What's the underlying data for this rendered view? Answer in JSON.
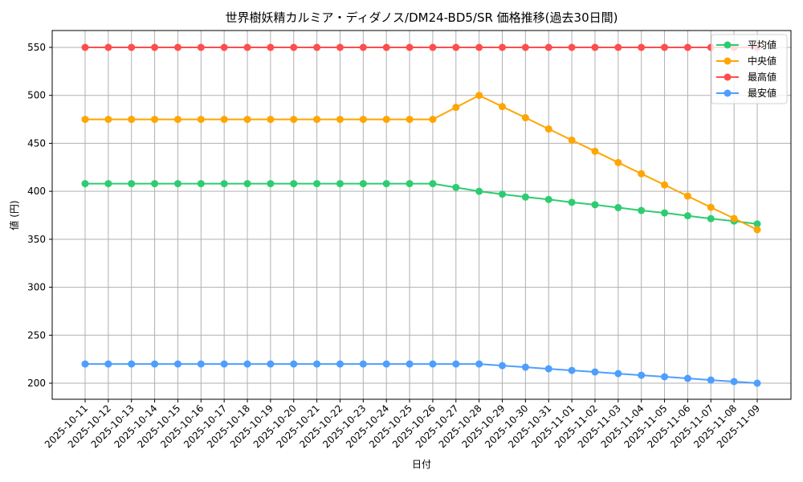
{
  "chart_data": {
    "type": "line",
    "title": "世界樹妖精カルミア・ディダノス/DM24-BD5/SR 価格推移(過去30日間)",
    "xlabel": "日付",
    "ylabel": "値 (円)",
    "ylim": [
      182,
      566
    ],
    "yticks": [
      200,
      250,
      300,
      350,
      400,
      450,
      500,
      550
    ],
    "grid": true,
    "legend_position": "upper right",
    "x": [
      "2025-10-11",
      "2025-10-12",
      "2025-10-13",
      "2025-10-14",
      "2025-10-15",
      "2025-10-16",
      "2025-10-17",
      "2025-10-18",
      "2025-10-19",
      "2025-10-20",
      "2025-10-21",
      "2025-10-22",
      "2025-10-23",
      "2025-10-24",
      "2025-10-25",
      "2025-10-26",
      "2025-10-27",
      "2025-10-28",
      "2025-10-29",
      "2025-10-30",
      "2025-10-31",
      "2025-11-01",
      "2025-11-02",
      "2025-11-03",
      "2025-11-04",
      "2025-11-05",
      "2025-11-06",
      "2025-11-07",
      "2025-11-08",
      "2025-11-09"
    ],
    "series": [
      {
        "name": "平均値",
        "color": "#2ecc71",
        "values": [
          408,
          408,
          408,
          408,
          408,
          408,
          408,
          408,
          408,
          408,
          408,
          408,
          408,
          408,
          408,
          408,
          404,
          400,
          397,
          394,
          391.5,
          388.5,
          386,
          383,
          380,
          377.5,
          374.5,
          371.5,
          369,
          366
        ]
      },
      {
        "name": "中央値",
        "color": "#ffa500",
        "values": [
          475,
          475,
          475,
          475,
          475,
          475,
          475,
          475,
          475,
          475,
          475,
          475,
          475,
          475,
          475,
          475,
          487.5,
          500,
          488.3,
          476.7,
          465,
          453.3,
          441.7,
          430,
          418.3,
          406.7,
          395,
          383.3,
          371.7,
          360
        ]
      },
      {
        "name": "最高値",
        "color": "#ff4d4d",
        "values": [
          550,
          550,
          550,
          550,
          550,
          550,
          550,
          550,
          550,
          550,
          550,
          550,
          550,
          550,
          550,
          550,
          550,
          550,
          550,
          550,
          550,
          550,
          550,
          550,
          550,
          550,
          550,
          550,
          550,
          550
        ]
      },
      {
        "name": "最安値",
        "color": "#4d9eff",
        "values": [
          220,
          220,
          220,
          220,
          220,
          220,
          220,
          220,
          220,
          220,
          220,
          220,
          220,
          220,
          220,
          220,
          220,
          220,
          218.3,
          216.7,
          215,
          213.3,
          211.7,
          210,
          208.3,
          206.7,
          205,
          203.3,
          201.7,
          200
        ]
      }
    ]
  }
}
